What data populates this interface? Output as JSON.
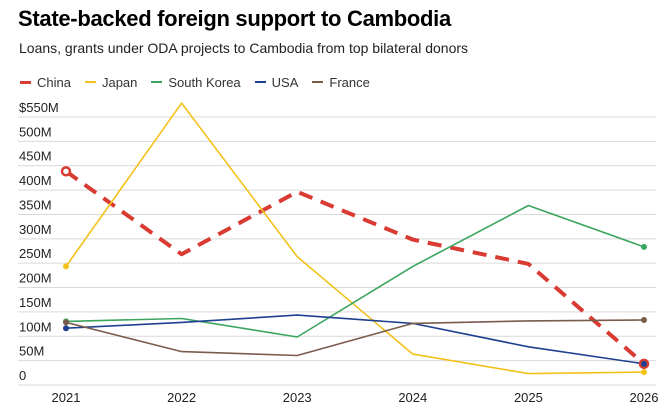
{
  "header": {
    "title": "State-backed foreign support to Cambodia",
    "subtitle": "Loans, grants under ODA projects to Cambodia from top bilateral donors"
  },
  "chart_data": {
    "type": "line",
    "title": "State-backed foreign support to Cambodia",
    "subtitle": "Loans, grants under ODA projects to Cambodia from top bilateral donors",
    "xlabel": "",
    "ylabel": "",
    "x": [
      "2021",
      "2022",
      "2023",
      "2024",
      "2025",
      "2026"
    ],
    "ylim": [
      0,
      550
    ],
    "y_ticks": [
      0,
      50,
      100,
      150,
      200,
      250,
      300,
      350,
      400,
      450,
      500,
      550
    ],
    "y_tick_labels": [
      "0",
      "50M",
      "100M",
      "150M",
      "200M",
      "250M",
      "300M",
      "350M",
      "400M",
      "450M",
      "500M",
      "$550M"
    ],
    "grid": true,
    "legend_position": "top-left",
    "series": [
      {
        "name": "China",
        "color": "#d93a32",
        "dashed": true,
        "values": [
          420,
          250,
          378,
          280,
          230,
          25
        ],
        "end_marker": "open"
      },
      {
        "name": "Japan",
        "color": "#f2c21b",
        "dashed": false,
        "values": [
          225,
          560,
          245,
          45,
          5,
          8
        ],
        "end_marker": "filled"
      },
      {
        "name": "South Korea",
        "color": "#3aa55c",
        "dashed": false,
        "values": [
          112,
          118,
          80,
          225,
          350,
          265
        ],
        "end_marker": "filled"
      },
      {
        "name": "USA",
        "color": "#1f3f8f",
        "dashed": false,
        "values": [
          98,
          110,
          125,
          108,
          60,
          25
        ],
        "end_marker": "filled"
      },
      {
        "name": "France",
        "color": "#7a5c4c",
        "dashed": false,
        "values": [
          110,
          50,
          42,
          108,
          113,
          115
        ],
        "end_marker": "filled"
      }
    ]
  }
}
